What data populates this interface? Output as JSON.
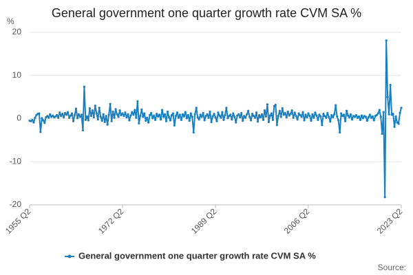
{
  "chart_data": {
    "type": "line",
    "title": "General government one quarter growth rate CVM SA %",
    "y_label": "%",
    "source_label": "Source:",
    "categories": [
      "1955 Q2",
      null,
      null,
      null,
      null,
      null,
      null,
      null,
      null,
      null,
      null,
      null,
      null,
      null,
      null,
      null,
      null,
      null,
      null,
      null,
      null,
      null,
      null,
      null,
      null,
      null,
      null,
      null,
      null,
      null,
      null,
      null,
      null,
      null,
      null,
      null,
      null,
      null,
      null,
      null,
      null,
      null,
      null,
      null,
      null,
      null,
      null,
      null,
      null,
      null,
      null,
      null,
      null,
      null,
      null,
      null,
      null,
      null,
      null,
      null,
      null,
      null,
      null,
      null,
      null,
      null,
      null,
      null,
      "1972 Q2",
      null,
      null,
      null,
      null,
      null,
      null,
      null,
      null,
      null,
      null,
      null,
      null,
      null,
      null,
      null,
      null,
      null,
      null,
      null,
      null,
      null,
      null,
      null,
      null,
      null,
      null,
      null,
      null,
      null,
      null,
      null,
      null,
      null,
      null,
      null,
      null,
      null,
      null,
      null,
      null,
      null,
      null,
      null,
      null,
      null,
      null,
      null,
      null,
      null,
      null,
      null,
      null,
      null,
      null,
      null,
      null,
      null,
      null,
      null,
      null,
      null,
      null,
      null,
      null,
      null,
      null,
      null,
      "1989 Q2",
      null,
      null,
      null,
      null,
      null,
      null,
      null,
      null,
      null,
      null,
      null,
      null,
      null,
      null,
      null,
      null,
      null,
      null,
      null,
      null,
      null,
      null,
      null,
      null,
      null,
      null,
      null,
      null,
      null,
      null,
      null,
      null,
      null,
      null,
      null,
      null,
      null,
      null,
      null,
      null,
      null,
      null,
      null,
      null,
      null,
      null,
      null,
      null,
      null,
      null,
      null,
      null,
      null,
      null,
      null,
      null,
      null,
      null,
      null,
      null,
      null,
      null,
      null,
      null,
      null,
      null,
      null,
      "2006 Q2",
      null,
      null,
      null,
      null,
      null,
      null,
      null,
      null,
      null,
      null,
      null,
      null,
      null,
      null,
      null,
      null,
      null,
      null,
      null,
      null,
      null,
      null,
      null,
      null,
      null,
      null,
      null,
      null,
      null,
      null,
      null,
      null,
      null,
      null,
      null,
      null,
      null,
      null,
      null,
      null,
      null,
      null,
      null,
      null,
      null,
      null,
      null,
      null,
      null,
      null,
      null,
      null,
      null,
      null,
      null,
      null,
      null,
      null,
      null,
      null,
      null,
      null,
      null,
      null,
      null,
      null,
      null,
      "2023 Q2"
    ],
    "series": [
      {
        "name": "General government one quarter growth rate CVM SA %",
        "color": "#1a7fc1",
        "values": [
          -0.5,
          -0.6,
          -0.3,
          -0.9,
          0.2,
          0.8,
          1.1,
          1.2,
          -3.1,
          0.1,
          -0.4,
          -1.0,
          0.3,
          0.6,
          0.2,
          1.0,
          0.4,
          0.7,
          0.3,
          0.5,
          0.8,
          0.2,
          1.4,
          0.6,
          1.1,
          0.3,
          1.3,
          0.9,
          1.5,
          0.2,
          0.7,
          1.2,
          -0.6,
          0.8,
          2.3,
          0.1,
          1.0,
          0.4,
          0.9,
          -2.7,
          7.4,
          -0.3,
          0.5,
          -0.4,
          2.4,
          0.6,
          1.9,
          0.3,
          3.0,
          1.2,
          -0.2,
          2.5,
          0.4,
          -0.5,
          1.0,
          -0.8,
          0.6,
          -1.4,
          0.9,
          3.4,
          -0.6,
          1.6,
          0.2,
          2.2,
          1.0,
          0.4,
          1.9,
          0.8,
          1.2,
          0.6,
          1.4,
          0.3,
          1.0,
          -0.4,
          0.7,
          1.5,
          0.9,
          2.0,
          0.2,
          4.0,
          -1.1,
          0.6,
          2.1,
          0.4,
          1.2,
          -0.5,
          0.2,
          -0.9,
          0.8,
          1.3,
          0.1,
          0.7,
          -0.3,
          1.1,
          0.5,
          0.9,
          -0.2,
          2.0,
          0.4,
          1.0,
          -0.6,
          1.6,
          0.3,
          -0.4,
          0.8,
          1.2,
          -1.6,
          0.6,
          1.4,
          0.2,
          0.9,
          -0.3,
          1.0,
          0.5,
          1.5,
          0.1,
          0.8,
          -0.5,
          1.2,
          0.4,
          -3.2,
          1.0,
          2.5,
          0.3,
          -0.2,
          0.9,
          0.4,
          1.3,
          -0.4,
          0.6,
          1.0,
          0.2,
          1.6,
          -0.8,
          0.5,
          1.1,
          0.3,
          -0.6,
          1.4,
          0.7,
          0.2,
          1.5,
          -0.3,
          0.8,
          2.5,
          0.1,
          0.6,
          0.9,
          -0.2,
          1.2,
          0.4,
          -0.9,
          0.7,
          1.0,
          0.3,
          1.3,
          -0.5,
          0.6,
          0.2,
          1.0,
          1.8,
          0.4,
          -0.4,
          1.1,
          0.6,
          0.2,
          1.4,
          -0.7,
          0.8,
          0.3,
          1.0,
          -0.3,
          1.9,
          0.5,
          3.3,
          -0.8,
          0.7,
          1.2,
          -0.3,
          2.9,
          3.2,
          -1.5,
          0.6,
          1.8,
          0.4,
          2.4,
          0.9,
          1.3,
          0.3,
          1.6,
          0.7,
          1.1,
          1.9,
          0.2,
          1.4,
          0.6,
          -0.2,
          1.2,
          0.8,
          0.4,
          1.5,
          -0.4,
          0.9,
          0.3,
          1.2,
          0.6,
          -0.5,
          1.0,
          0.2,
          1.4,
          0.7,
          -0.3,
          0.9,
          0.5,
          -1.5,
          1.1,
          0.6,
          0.2,
          1.3,
          0.4,
          -0.7,
          0.8,
          0.3,
          1.0,
          3.1,
          0.5,
          -0.4,
          -3.2,
          1.2,
          0.6,
          0.9,
          -0.6,
          1.8,
          0.7,
          0.3,
          1.0,
          -0.2,
          0.6,
          0.4,
          0.8,
          0.2,
          0.5,
          -0.3,
          0.7,
          0.1,
          0.6,
          0.4,
          -0.5,
          0.3,
          0.9,
          0.2,
          0.5,
          -0.4,
          0.6,
          0.8,
          1.2,
          2.0,
          0.4,
          -3.5,
          1.5,
          -18.2,
          18.1,
          5.0,
          1.0,
          7.8,
          0.9,
          1.1,
          -1.9,
          0.5,
          -0.9,
          -1.2,
          1.3,
          2.5
        ]
      }
    ],
    "ylim": [
      -20,
      20
    ],
    "yticks": [
      -20,
      -10,
      0,
      10,
      20
    ],
    "grid": true,
    "legend": "bottom"
  }
}
